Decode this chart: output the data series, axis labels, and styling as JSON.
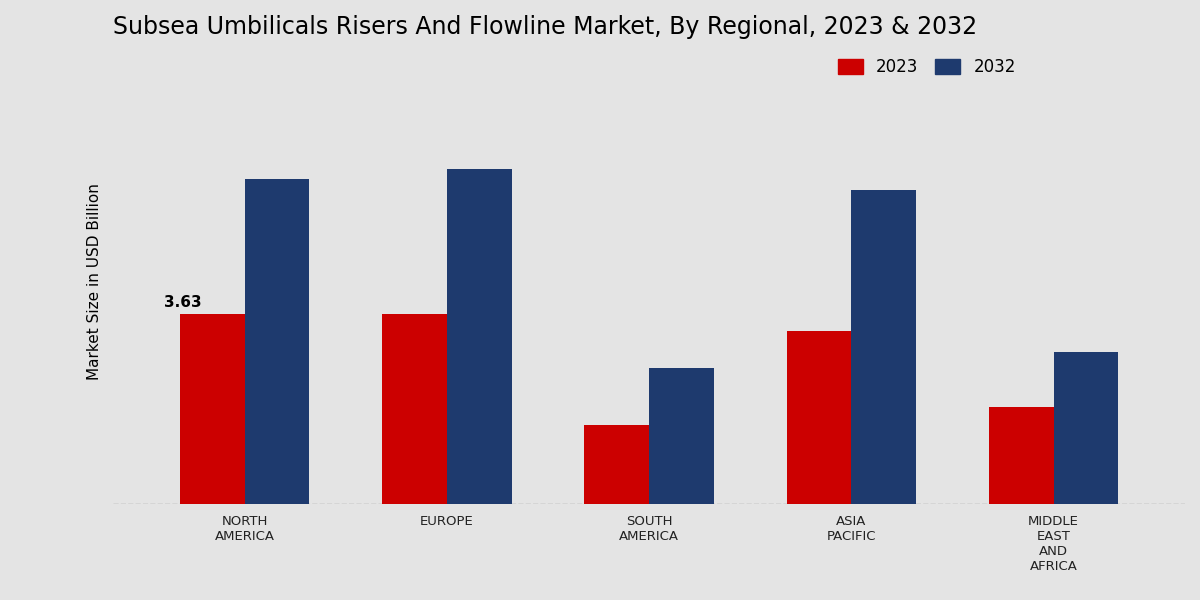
{
  "title": "Subsea Umbilicals Risers And Flowline Market, By Regional, 2023 & 2032",
  "ylabel": "Market Size in USD Billion",
  "categories": [
    "NORTH\nAMERICA",
    "EUROPE",
    "SOUTH\nAMERICA",
    "ASIA\nPACIFIC",
    "MIDDLE\nEAST\nAND\nAFRICA"
  ],
  "values_2023": [
    3.63,
    3.63,
    1.5,
    3.3,
    1.85
  ],
  "values_2032": [
    6.2,
    6.4,
    2.6,
    6.0,
    2.9
  ],
  "color_2023": "#cc0000",
  "color_2032": "#1e3a6e",
  "bar_width": 0.32,
  "bg_light": "#f0f0f0",
  "bg_dark": "#cccccc",
  "annotation_value": "3.63",
  "annotation_region_idx": 0,
  "legend_2023": "2023",
  "legend_2032": "2032",
  "title_fontsize": 17,
  "label_fontsize": 11,
  "tick_fontsize": 9.5,
  "ylim": [
    0,
    8.5
  ]
}
